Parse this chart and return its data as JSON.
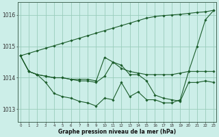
{
  "xlabel": "Graphe pression niveau de la mer (hPa)",
  "background_color": "#cceee8",
  "grid_color": "#99ccbb",
  "line_color": "#1a5c2a",
  "ylim": [
    1012.6,
    1016.4
  ],
  "xlim": [
    -0.3,
    23.3
  ],
  "yticks": [
    1013,
    1014,
    1015,
    1016
  ],
  "xticks": [
    0,
    1,
    2,
    3,
    4,
    5,
    6,
    7,
    8,
    9,
    10,
    11,
    12,
    13,
    14,
    15,
    16,
    17,
    18,
    19,
    20,
    21,
    22,
    23
  ],
  "series_diagonal": [
    1014.7,
    1014.78,
    1014.86,
    1014.94,
    1015.02,
    1015.1,
    1015.18,
    1015.26,
    1015.34,
    1015.42,
    1015.5,
    1015.58,
    1015.66,
    1015.74,
    1015.82,
    1015.9,
    1015.95,
    1015.98,
    1016.0,
    1016.02,
    1016.05,
    1016.08,
    1016.1,
    1016.15
  ],
  "series_wavy": [
    1014.7,
    1014.2,
    1014.1,
    1013.85,
    1013.5,
    1013.4,
    1013.35,
    1013.25,
    1013.2,
    1013.1,
    1013.35,
    1013.3,
    1013.85,
    1013.4,
    1013.55,
    1013.3,
    1013.3,
    1013.2,
    1013.2,
    1013.3,
    1014.2,
    1015.0,
    1015.85,
    1016.15
  ],
  "series_flat": [
    1014.7,
    1014.2,
    1014.1,
    1014.05,
    1014.0,
    1014.0,
    1013.95,
    1013.95,
    1013.95,
    1013.9,
    1014.65,
    1014.5,
    1014.3,
    1014.2,
    1014.15,
    1014.1,
    1014.1,
    1014.1,
    1014.1,
    1014.15,
    1014.2,
    1014.2,
    1014.2,
    1014.2
  ],
  "series_mid": [
    1014.7,
    1014.2,
    1014.1,
    1014.05,
    1014.0,
    1014.0,
    1013.95,
    1013.9,
    1013.9,
    1013.85,
    1014.05,
    1014.5,
    1014.4,
    1014.1,
    1014.1,
    1013.9,
    1013.45,
    1013.35,
    1013.3,
    1013.25,
    1013.85,
    1013.85,
    1013.9,
    1013.85
  ]
}
